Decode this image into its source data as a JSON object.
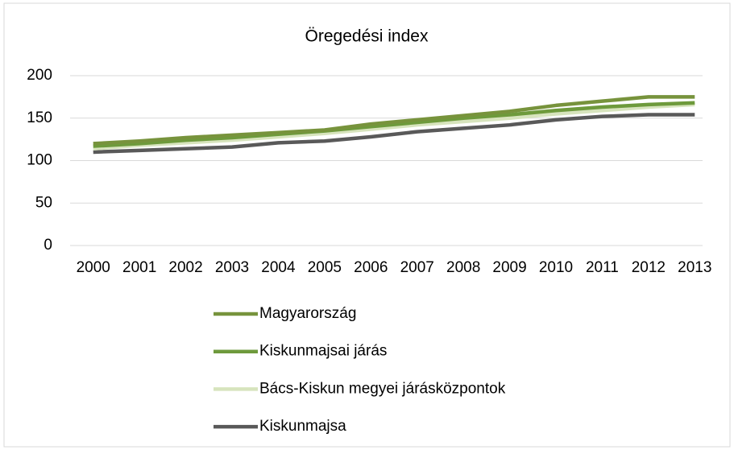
{
  "chart_data": {
    "type": "line",
    "title": "Öregedési index",
    "categories": [
      "2000",
      "2001",
      "2002",
      "2003",
      "2004",
      "2005",
      "2006",
      "2007",
      "2008",
      "2009",
      "2010",
      "2011",
      "2012",
      "2013"
    ],
    "series": [
      {
        "name": "Magyarország",
        "color": "#77933c",
        "values": [
          120,
          123,
          127,
          130,
          133,
          136,
          143,
          148,
          153,
          158,
          165,
          170,
          175,
          175
        ]
      },
      {
        "name": "Kiskunmajsai járás",
        "color": "#6e9a3c",
        "values": [
          117,
          120,
          124,
          127,
          131,
          135,
          140,
          145,
          150,
          154,
          159,
          163,
          166,
          168
        ]
      },
      {
        "name": "Bács-Kiskun megyei járásközpontok",
        "color": "#d7e4bd",
        "values": [
          114,
          118,
          121,
          124,
          128,
          132,
          137,
          142,
          146,
          150,
          155,
          159,
          163,
          166
        ]
      },
      {
        "name": "Kiskunmajsa",
        "color": "#595959",
        "values": [
          110,
          112,
          114,
          116,
          121,
          123,
          128,
          134,
          138,
          142,
          148,
          152,
          154,
          154
        ]
      }
    ],
    "ylim": [
      0,
      200
    ],
    "yticks": [
      0,
      50,
      100,
      150,
      200
    ],
    "grid": true
  }
}
